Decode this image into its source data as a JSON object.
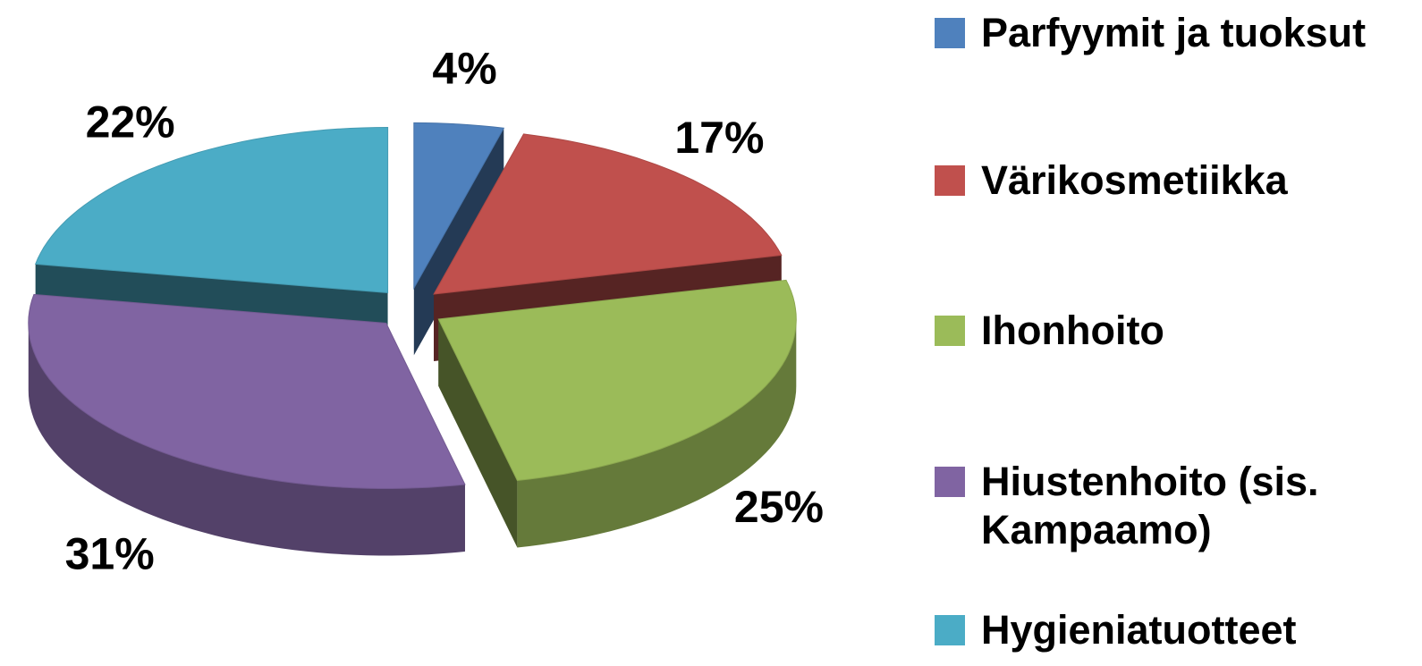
{
  "chart_data": {
    "type": "pie3d",
    "categories": [
      "Parfyymit ja tuoksut",
      "Värikosmetiikka",
      "Ihonhoito",
      "Hiustenhoito (sis. Kampaamo)",
      "Hygieniatuotteet"
    ],
    "values": [
      4,
      17,
      25,
      31,
      22
    ],
    "value_labels": [
      "4%",
      "17%",
      "25%",
      "31%",
      "22%"
    ],
    "colors": [
      "#4f81bd",
      "#c0504d",
      "#9bbb59",
      "#8064a2",
      "#4bacc6"
    ],
    "legend": "right"
  }
}
